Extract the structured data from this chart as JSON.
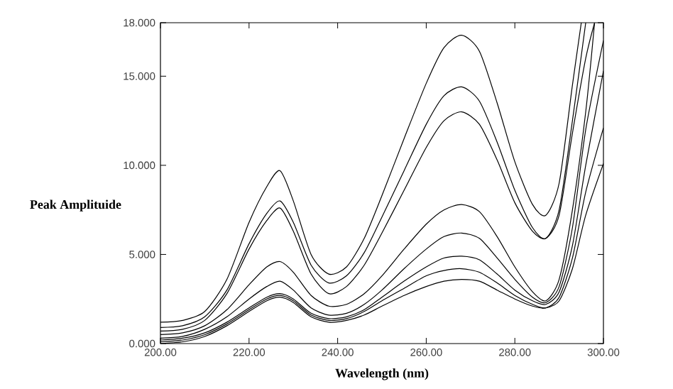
{
  "chart_data": {
    "type": "line",
    "xlabel": "Wavelength (nm)",
    "ylabel": "Peak Amplituide",
    "xlim": [
      200,
      300
    ],
    "ylim": [
      0,
      18
    ],
    "xticks": [
      {
        "value": 200,
        "label": "200.00"
      },
      {
        "value": 220,
        "label": "220.00"
      },
      {
        "value": 240,
        "label": "240.00"
      },
      {
        "value": 260,
        "label": "260.00"
      },
      {
        "value": 280,
        "label": "280.00"
      },
      {
        "value": 300,
        "label": "300.00"
      }
    ],
    "yticks": [
      {
        "value": 0,
        "label": "0.000"
      },
      {
        "value": 5,
        "label": "5.000"
      },
      {
        "value": 10,
        "label": "10.000"
      },
      {
        "value": 15,
        "label": "15.000"
      },
      {
        "value": 18,
        "label": "18.000"
      }
    ],
    "grid": false,
    "marker": "none",
    "line_style": "solid",
    "series": [
      {
        "color": "#000000",
        "x": [
          200,
          205,
          210,
          215,
          220,
          224,
          227,
          230,
          234,
          238,
          242,
          246,
          250,
          255,
          260,
          264,
          268,
          272,
          276,
          280,
          284,
          287,
          290,
          293,
          295
        ],
        "values": [
          1.2,
          1.3,
          1.8,
          3.6,
          6.8,
          8.8,
          9.7,
          8.0,
          5.0,
          3.9,
          4.3,
          5.9,
          8.3,
          11.5,
          14.6,
          16.6,
          17.3,
          16.4,
          13.5,
          10.2,
          7.8,
          7.2,
          9.0,
          14.5,
          18
        ]
      },
      {
        "color": "#000000",
        "x": [
          200,
          205,
          210,
          215,
          220,
          224,
          227,
          230,
          234,
          238,
          242,
          246,
          250,
          255,
          260,
          264,
          268,
          272,
          276,
          280,
          284,
          287,
          290,
          293,
          296
        ],
        "values": [
          0.9,
          1.0,
          1.5,
          3.0,
          5.6,
          7.3,
          8.0,
          6.8,
          4.4,
          3.4,
          3.8,
          5.1,
          7.1,
          9.7,
          12.3,
          13.9,
          14.4,
          13.6,
          11.3,
          8.6,
          6.5,
          5.9,
          7.5,
          12.5,
          18
        ]
      },
      {
        "color": "#000000",
        "x": [
          200,
          205,
          210,
          215,
          220,
          224,
          227,
          230,
          234,
          238,
          242,
          246,
          250,
          255,
          260,
          264,
          268,
          272,
          276,
          280,
          284,
          287,
          290,
          293,
          296,
          298
        ],
        "values": [
          0.7,
          0.8,
          1.3,
          2.8,
          5.3,
          6.9,
          7.6,
          6.3,
          3.9,
          2.8,
          3.2,
          4.4,
          6.2,
          8.6,
          11.0,
          12.5,
          13.0,
          12.3,
          10.3,
          7.9,
          6.3,
          5.9,
          7.2,
          11.8,
          16.0,
          18
        ]
      },
      {
        "color": "#000000",
        "x": [
          200,
          205,
          210,
          215,
          220,
          224,
          227,
          230,
          234,
          238,
          242,
          246,
          250,
          255,
          260,
          264,
          268,
          272,
          276,
          280,
          284,
          287,
          290,
          293,
          296,
          298
        ],
        "values": [
          0.5,
          0.6,
          1.0,
          1.9,
          3.3,
          4.3,
          4.6,
          4.0,
          2.7,
          2.1,
          2.2,
          2.8,
          3.8,
          5.3,
          6.7,
          7.5,
          7.8,
          7.4,
          6.0,
          4.3,
          2.9,
          2.4,
          3.6,
          7.5,
          13.0,
          18
        ]
      },
      {
        "color": "#000000",
        "x": [
          200,
          205,
          210,
          215,
          220,
          224,
          227,
          230,
          234,
          238,
          242,
          246,
          250,
          255,
          260,
          264,
          268,
          272,
          276,
          280,
          284,
          287,
          290,
          293,
          296,
          300
        ],
        "values": [
          0.3,
          0.4,
          0.8,
          1.5,
          2.5,
          3.2,
          3.5,
          3.0,
          2.0,
          1.6,
          1.7,
          2.2,
          3.0,
          4.2,
          5.3,
          6.0,
          6.2,
          5.9,
          4.8,
          3.6,
          2.6,
          2.3,
          3.2,
          6.5,
          12.0,
          17
        ]
      },
      {
        "color": "#000000",
        "x": [
          200,
          205,
          210,
          215,
          220,
          224,
          227,
          230,
          234,
          238,
          242,
          246,
          250,
          255,
          260,
          264,
          268,
          272,
          276,
          280,
          284,
          287,
          290,
          293,
          296,
          300
        ],
        "values": [
          0.2,
          0.3,
          0.6,
          1.2,
          2.0,
          2.6,
          2.8,
          2.5,
          1.7,
          1.4,
          1.5,
          1.9,
          2.6,
          3.5,
          4.3,
          4.8,
          4.9,
          4.7,
          3.9,
          3.0,
          2.4,
          2.2,
          2.9,
          5.5,
          10.0,
          15.3
        ]
      },
      {
        "color": "#000000",
        "x": [
          200,
          205,
          210,
          215,
          220,
          224,
          227,
          230,
          234,
          238,
          242,
          246,
          250,
          255,
          260,
          264,
          268,
          272,
          276,
          280,
          284,
          287,
          290,
          293,
          296,
          300
        ],
        "values": [
          0.1,
          0.2,
          0.5,
          1.1,
          1.9,
          2.5,
          2.7,
          2.4,
          1.6,
          1.3,
          1.4,
          1.8,
          2.4,
          3.1,
          3.8,
          4.1,
          4.2,
          4.0,
          3.4,
          2.7,
          2.2,
          2.0,
          2.6,
          4.8,
          8.5,
          12.1
        ]
      },
      {
        "color": "#000000",
        "x": [
          200,
          205,
          210,
          215,
          220,
          224,
          227,
          230,
          234,
          238,
          242,
          246,
          250,
          255,
          260,
          264,
          268,
          272,
          276,
          280,
          284,
          287,
          290,
          293,
          296,
          300
        ],
        "values": [
          0.0,
          0.1,
          0.4,
          1.0,
          1.8,
          2.4,
          2.6,
          2.3,
          1.5,
          1.2,
          1.3,
          1.6,
          2.1,
          2.7,
          3.2,
          3.5,
          3.6,
          3.5,
          3.0,
          2.5,
          2.1,
          2.0,
          2.4,
          4.2,
          7.2,
          10.1
        ]
      }
    ]
  }
}
